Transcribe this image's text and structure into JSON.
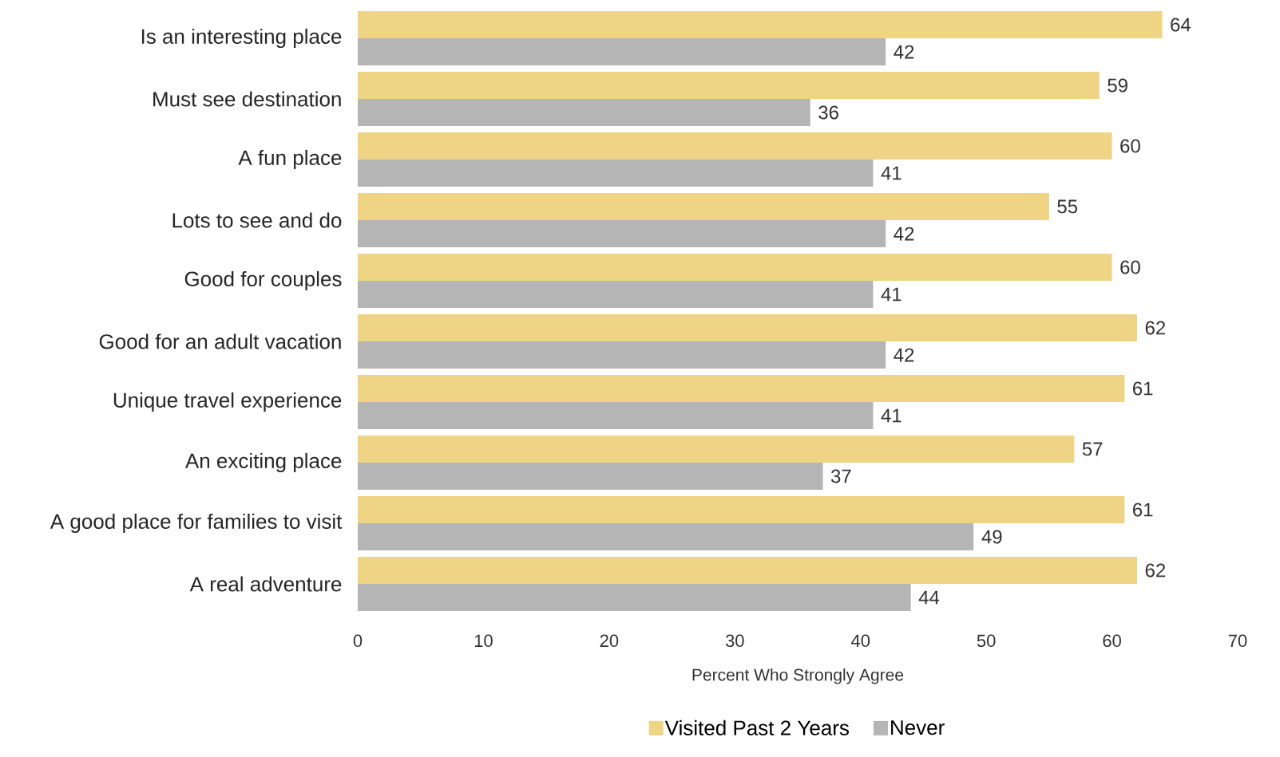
{
  "chart_data": {
    "type": "bar",
    "orientation": "horizontal",
    "categories": [
      "Is an interesting place",
      "Must see destination",
      "A fun place",
      "Lots to see and do",
      "Good for couples",
      "Good for an adult vacation",
      "Unique travel experience",
      "An exciting place",
      "A good place for families to visit",
      "A real adventure"
    ],
    "series": [
      {
        "name": "Visited Past 2 Years",
        "color": "#eed484",
        "values": [
          64,
          59,
          60,
          55,
          60,
          62,
          61,
          57,
          61,
          62
        ]
      },
      {
        "name": "Never",
        "color": "#b5b5b5",
        "values": [
          42,
          36,
          41,
          42,
          41,
          42,
          41,
          37,
          49,
          44
        ]
      }
    ],
    "xlim": [
      0,
      70
    ],
    "xticks": [
      0,
      10,
      20,
      30,
      40,
      50,
      60,
      70
    ],
    "xlabel": "Percent Who Strongly Agree",
    "data_labels": true,
    "legend": "bottom"
  }
}
